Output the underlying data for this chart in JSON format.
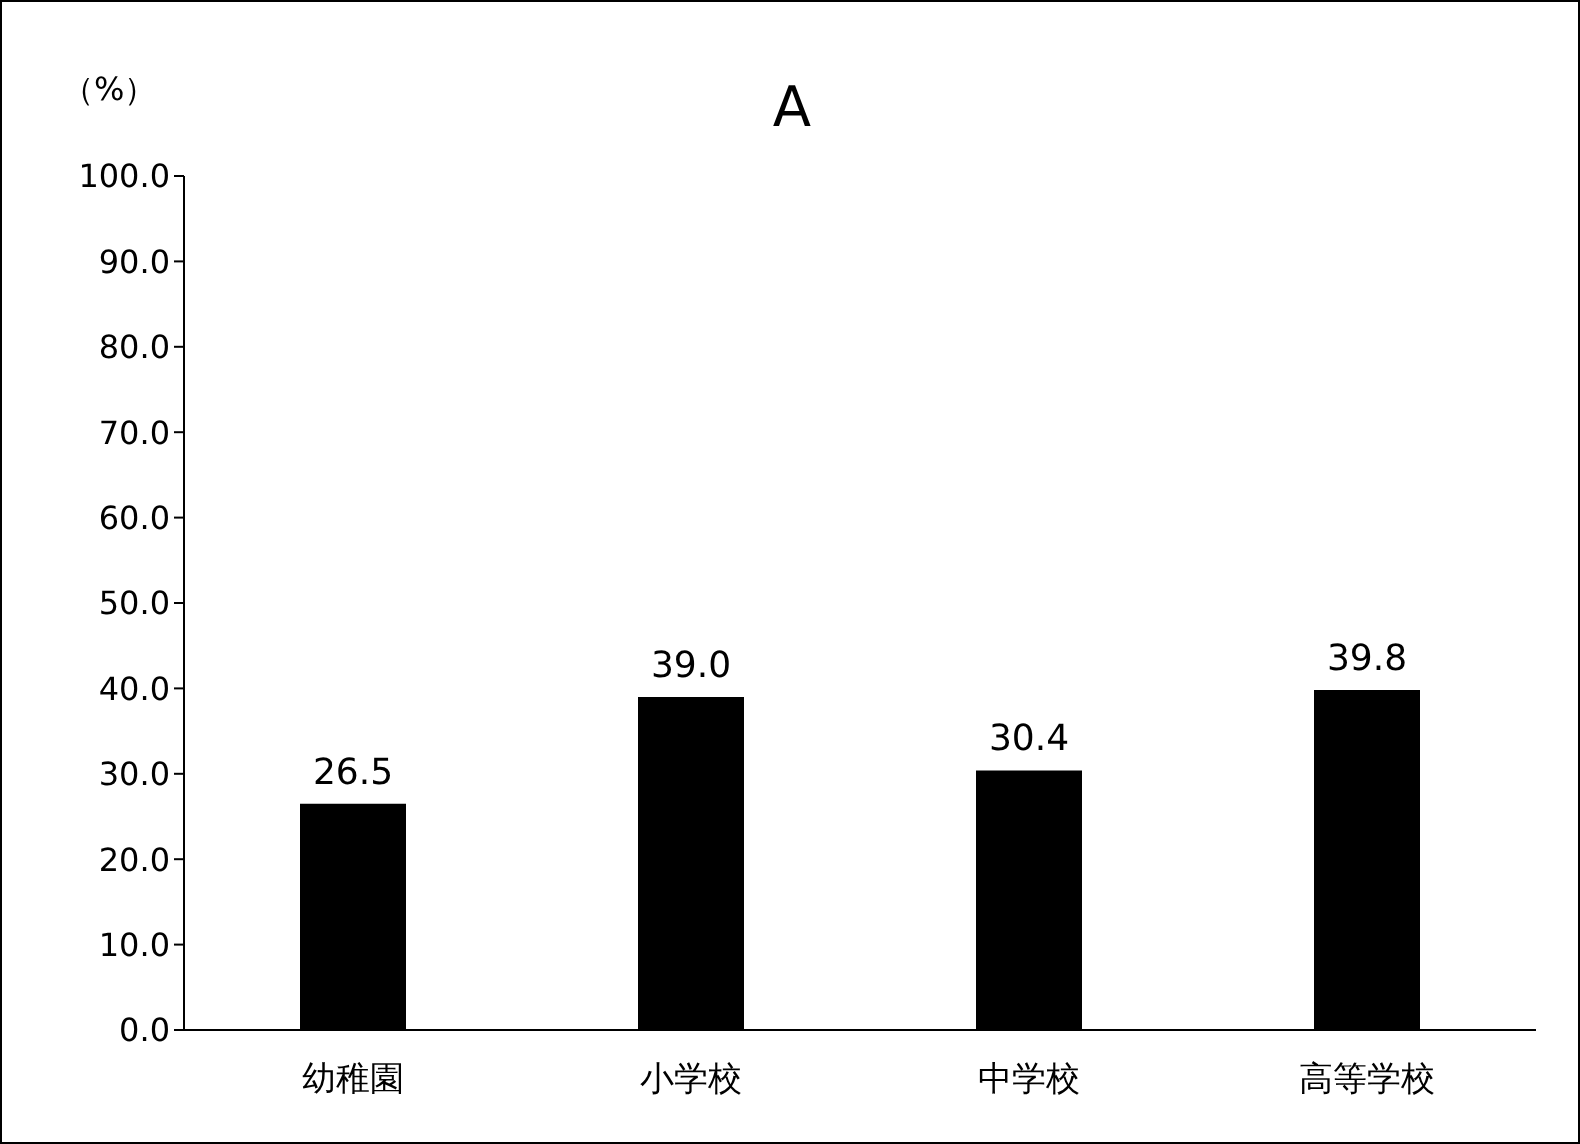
{
  "chart_data": {
    "type": "bar",
    "title": "A",
    "ylabel": "（%）",
    "categories": [
      "幼稚園",
      "小学校",
      "中学校",
      "高等学校"
    ],
    "values": [
      26.5,
      39.0,
      30.4,
      39.8
    ],
    "value_labels": [
      "26.5",
      "39.0",
      "30.4",
      "39.8"
    ],
    "color": "#000000",
    "ylim": [
      0,
      100
    ],
    "yticks": [
      {
        "value": 0,
        "label": "0.0"
      },
      {
        "value": 10,
        "label": "10.0"
      },
      {
        "value": 20,
        "label": "20.0"
      },
      {
        "value": 30,
        "label": "30.0"
      },
      {
        "value": 40,
        "label": "40.0"
      },
      {
        "value": 50,
        "label": "50.0"
      },
      {
        "value": 60,
        "label": "60.0"
      },
      {
        "value": 70,
        "label": "70.0"
      },
      {
        "value": 80,
        "label": "80.0"
      },
      {
        "value": 90,
        "label": "90.0"
      },
      {
        "value": 100,
        "label": "100.0"
      }
    ],
    "grid": false,
    "legend": false
  }
}
